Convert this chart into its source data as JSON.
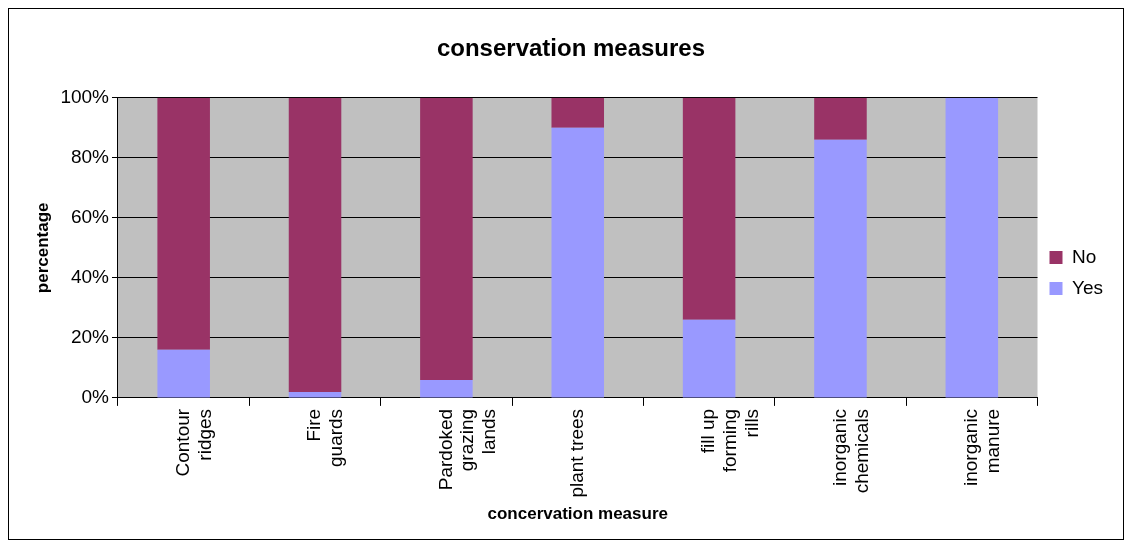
{
  "chart_data": {
    "type": "bar",
    "title": "conservation measures",
    "xlabel": "concervation measure",
    "ylabel": "percentage",
    "categories": [
      "Contour\nridges",
      "Fire\nguards",
      "Pardoked\ngrazing\nlands",
      "plant trees",
      "fill up\nforming\nrills",
      "inorganic\nchemicals",
      "inorganic\nmanure"
    ],
    "series": [
      {
        "name": "Yes",
        "color": "#9999ff",
        "values": [
          16,
          2,
          6,
          90,
          26,
          86,
          100
        ]
      },
      {
        "name": "No",
        "color": "#993366",
        "values": [
          84,
          98,
          94,
          10,
          74,
          14,
          0
        ]
      }
    ],
    "stacked": true,
    "ylim": [
      0,
      100
    ],
    "yticks": [
      {
        "value": 0,
        "label": "0%"
      },
      {
        "value": 20,
        "label": "20%"
      },
      {
        "value": 40,
        "label": "40%"
      },
      {
        "value": 60,
        "label": "60%"
      },
      {
        "value": 80,
        "label": "80%"
      },
      {
        "value": 100,
        "label": "100%"
      }
    ],
    "grid": "y",
    "legend": "right"
  }
}
